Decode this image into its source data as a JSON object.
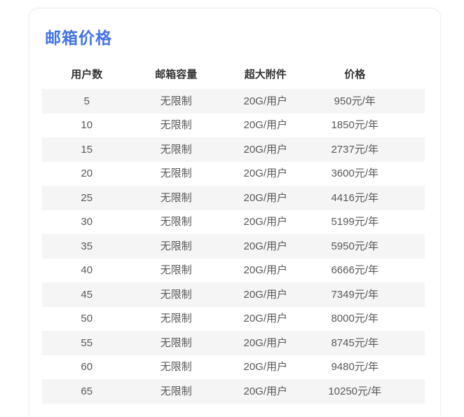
{
  "card": {
    "title": "邮箱价格"
  },
  "colors": {
    "title_blue": "#4273e8",
    "header_text": "#333333",
    "body_text": "#595959",
    "row_stripe": "#f5f5f6",
    "card_border": "#ededee"
  },
  "table": {
    "headers": [
      "用户数",
      "邮箱容量",
      "超大附件",
      "价格"
    ],
    "rows": [
      [
        "5",
        "无限制",
        "20G/用户",
        "950元/年"
      ],
      [
        "10",
        "无限制",
        "20G/用户",
        "1850元/年"
      ],
      [
        "15",
        "无限制",
        "20G/用户",
        "2737元/年"
      ],
      [
        "20",
        "无限制",
        "20G/用户",
        "3600元/年"
      ],
      [
        "25",
        "无限制",
        "20G/用户",
        "4416元/年"
      ],
      [
        "30",
        "无限制",
        "20G/用户",
        "5199元/年"
      ],
      [
        "35",
        "无限制",
        "20G/用户",
        "5950元/年"
      ],
      [
        "40",
        "无限制",
        "20G/用户",
        "6666元/年"
      ],
      [
        "45",
        "无限制",
        "20G/用户",
        "7349元/年"
      ],
      [
        "50",
        "无限制",
        "20G/用户",
        "8000元/年"
      ],
      [
        "55",
        "无限制",
        "20G/用户",
        "8745元/年"
      ],
      [
        "60",
        "无限制",
        "20G/用户",
        "9480元/年"
      ],
      [
        "65",
        "无限制",
        "20G/用户",
        "10250元/年"
      ]
    ]
  }
}
